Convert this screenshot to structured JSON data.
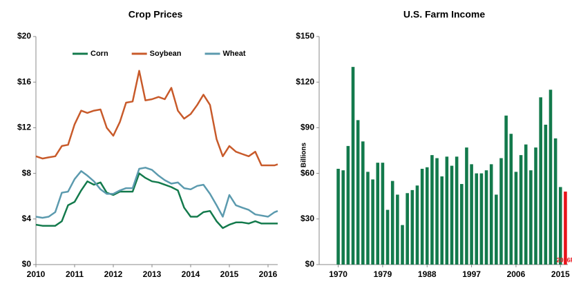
{
  "chart_data": [
    {
      "type": "line",
      "title": "Crop Prices",
      "x": [
        2010,
        2010.17,
        2010.33,
        2010.5,
        2010.67,
        2010.83,
        2011,
        2011.17,
        2011.33,
        2011.5,
        2011.67,
        2011.83,
        2012,
        2012.17,
        2012.33,
        2012.5,
        2012.67,
        2012.83,
        2013,
        2013.17,
        2013.33,
        2013.5,
        2013.67,
        2013.83,
        2014,
        2014.17,
        2014.33,
        2014.5,
        2014.67,
        2014.83,
        2015,
        2015.17,
        2015.33,
        2015.5,
        2015.67,
        2015.83,
        2016,
        2016.17,
        2016.25
      ],
      "series": [
        {
          "name": "Corn",
          "color": "#137a4c",
          "values": [
            3.5,
            3.4,
            3.4,
            3.4,
            3.8,
            5.2,
            5.5,
            6.5,
            7.3,
            7,
            7.2,
            6.3,
            6.1,
            6.4,
            6.4,
            6.4,
            8,
            7.6,
            7.3,
            7.2,
            7,
            6.8,
            6.5,
            5,
            4.2,
            4.2,
            4.6,
            4.7,
            3.8,
            3.2,
            3.5,
            3.7,
            3.7,
            3.6,
            3.8,
            3.6,
            3.6,
            3.6,
            3.6
          ]
        },
        {
          "name": "Soybean",
          "color": "#c85a2a",
          "values": [
            9.5,
            9.3,
            9.4,
            9.5,
            10.4,
            10.5,
            12.3,
            13.5,
            13.3,
            13.5,
            13.6,
            12,
            11.3,
            12.5,
            14.2,
            14.3,
            17,
            14.4,
            14.5,
            14.7,
            14.5,
            15.5,
            13.5,
            12.8,
            13.2,
            14,
            14.9,
            14,
            11,
            9.5,
            10.4,
            9.9,
            9.7,
            9.5,
            9.9,
            8.7,
            8.7,
            8.7,
            8.8
          ]
        },
        {
          "name": "Wheat",
          "color": "#5b9aae",
          "values": [
            4.2,
            4.1,
            4.2,
            4.6,
            6.3,
            6.4,
            7.5,
            8.2,
            7.8,
            7.3,
            6.6,
            6.2,
            6.2,
            6.5,
            6.7,
            6.7,
            8.4,
            8.5,
            8.3,
            7.8,
            7.4,
            7.1,
            7.2,
            6.7,
            6.6,
            6.9,
            7,
            6.2,
            5.2,
            4.2,
            6.1,
            5.2,
            5,
            4.8,
            4.4,
            4.3,
            4.2,
            4.6,
            4.7
          ]
        }
      ],
      "xlim": [
        2010,
        2016.25
      ],
      "xticks": [
        2010,
        2011,
        2012,
        2013,
        2014,
        2015,
        2016
      ],
      "ylim": [
        0,
        20
      ],
      "yticks": [
        {
          "value": 0,
          "label": "$0"
        },
        {
          "value": 4,
          "label": "$4"
        },
        {
          "value": 8,
          "label": "$8"
        },
        {
          "value": 12,
          "label": "$12"
        },
        {
          "value": 16,
          "label": "$16"
        },
        {
          "value": 20,
          "label": "$20"
        }
      ],
      "legend": "top",
      "grid": false
    },
    {
      "type": "bar",
      "title": "U.S. Farm Income",
      "y_label": "Billions",
      "categories": [
        "1970",
        null,
        null,
        null,
        null,
        null,
        null,
        null,
        null,
        "1979",
        null,
        null,
        null,
        null,
        null,
        null,
        null,
        null,
        "1988",
        null,
        null,
        null,
        null,
        null,
        null,
        null,
        null,
        "1997",
        null,
        null,
        null,
        null,
        null,
        null,
        null,
        null,
        "2006",
        null,
        null,
        null,
        null,
        null,
        null,
        null,
        null,
        "2015",
        null
      ],
      "values": [
        63,
        62,
        78,
        130,
        95,
        81,
        61,
        56,
        67,
        67,
        36,
        55,
        46,
        26,
        47,
        49,
        52,
        63,
        64,
        72,
        70,
        58,
        71,
        65,
        71,
        53,
        77,
        66,
        60,
        60,
        62,
        66,
        46,
        70,
        98,
        86,
        61,
        72,
        79,
        62,
        77,
        110,
        92,
        115,
        83,
        51,
        48
      ],
      "color": "#137a4c",
      "annotation": {
        "text": "2016F",
        "index": 46,
        "color": "#e8141b"
      },
      "ylim": [
        0,
        150
      ],
      "yticks": [
        {
          "value": 0,
          "label": "$0"
        },
        {
          "value": 30,
          "label": "$30"
        },
        {
          "value": 60,
          "label": "$60"
        },
        {
          "value": 90,
          "label": "$90"
        },
        {
          "value": 120,
          "label": "$120"
        },
        {
          "value": 150,
          "label": "$150"
        }
      ],
      "grid": false
    }
  ]
}
